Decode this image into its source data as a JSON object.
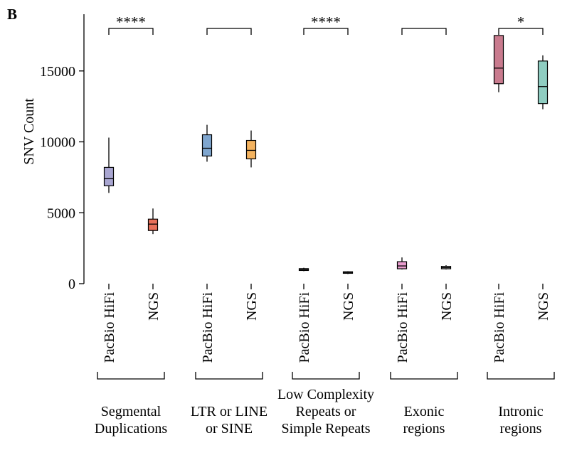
{
  "panel_label": "B",
  "chart_data": {
    "type": "box",
    "ylabel": "SNV Count",
    "ylim": [
      0,
      19000
    ],
    "yticks": [
      0,
      5000,
      10000,
      15000
    ],
    "grid": false,
    "groups": [
      {
        "lines": [
          "Segmental",
          "Duplications"
        ],
        "significance": "****",
        "boxes": [
          {
            "label": "PacBio HiFi",
            "color": "#a9a6d1",
            "min": 6400,
            "q1": 6900,
            "median": 7400,
            "q3": 8200,
            "max": 10300
          },
          {
            "label": "NGS",
            "color": "#e8705a",
            "min": 3500,
            "q1": 3750,
            "median": 4200,
            "q3": 4550,
            "max": 5300
          }
        ]
      },
      {
        "lines": [
          "LTR or LINE",
          "or SINE"
        ],
        "significance": "",
        "boxes": [
          {
            "label": "PacBio HiFi",
            "color": "#7fa6cf",
            "min": 8600,
            "q1": 9000,
            "median": 9550,
            "q3": 10500,
            "max": 11200
          },
          {
            "label": "NGS",
            "color": "#f4b35f",
            "min": 8200,
            "q1": 8800,
            "median": 9400,
            "q3": 10100,
            "max": 10800
          }
        ]
      },
      {
        "lines": [
          "Low Complexity",
          "Repeats or",
          "Simple Repeats"
        ],
        "significance": "****",
        "boxes": [
          {
            "label": "PacBio HiFi",
            "color": "#c9c9c9",
            "min": 880,
            "q1": 930,
            "median": 1000,
            "q3": 1060,
            "max": 1120
          },
          {
            "label": "NGS",
            "color": "#c9c9c9",
            "min": 680,
            "q1": 730,
            "median": 790,
            "q3": 840,
            "max": 880
          }
        ]
      },
      {
        "lines": [
          "Exonic",
          "regions"
        ],
        "significance": "",
        "boxes": [
          {
            "label": "PacBio HiFi",
            "color": "#e89ccd",
            "min": 1000,
            "q1": 1050,
            "median": 1250,
            "q3": 1550,
            "max": 1850
          },
          {
            "label": "NGS",
            "color": "#c9c9c9",
            "min": 1000,
            "q1": 1050,
            "median": 1130,
            "q3": 1220,
            "max": 1300
          }
        ]
      },
      {
        "lines": [
          "Intronic",
          "regions"
        ],
        "significance": "*",
        "boxes": [
          {
            "label": "PacBio HiFi",
            "color": "#c97b8e",
            "min": 13500,
            "q1": 14100,
            "median": 15200,
            "q3": 17500,
            "max": 17500
          },
          {
            "label": "NGS",
            "color": "#8fcdc1",
            "min": 12300,
            "q1": 12700,
            "median": 13900,
            "q3": 15700,
            "max": 16100
          }
        ]
      }
    ]
  }
}
